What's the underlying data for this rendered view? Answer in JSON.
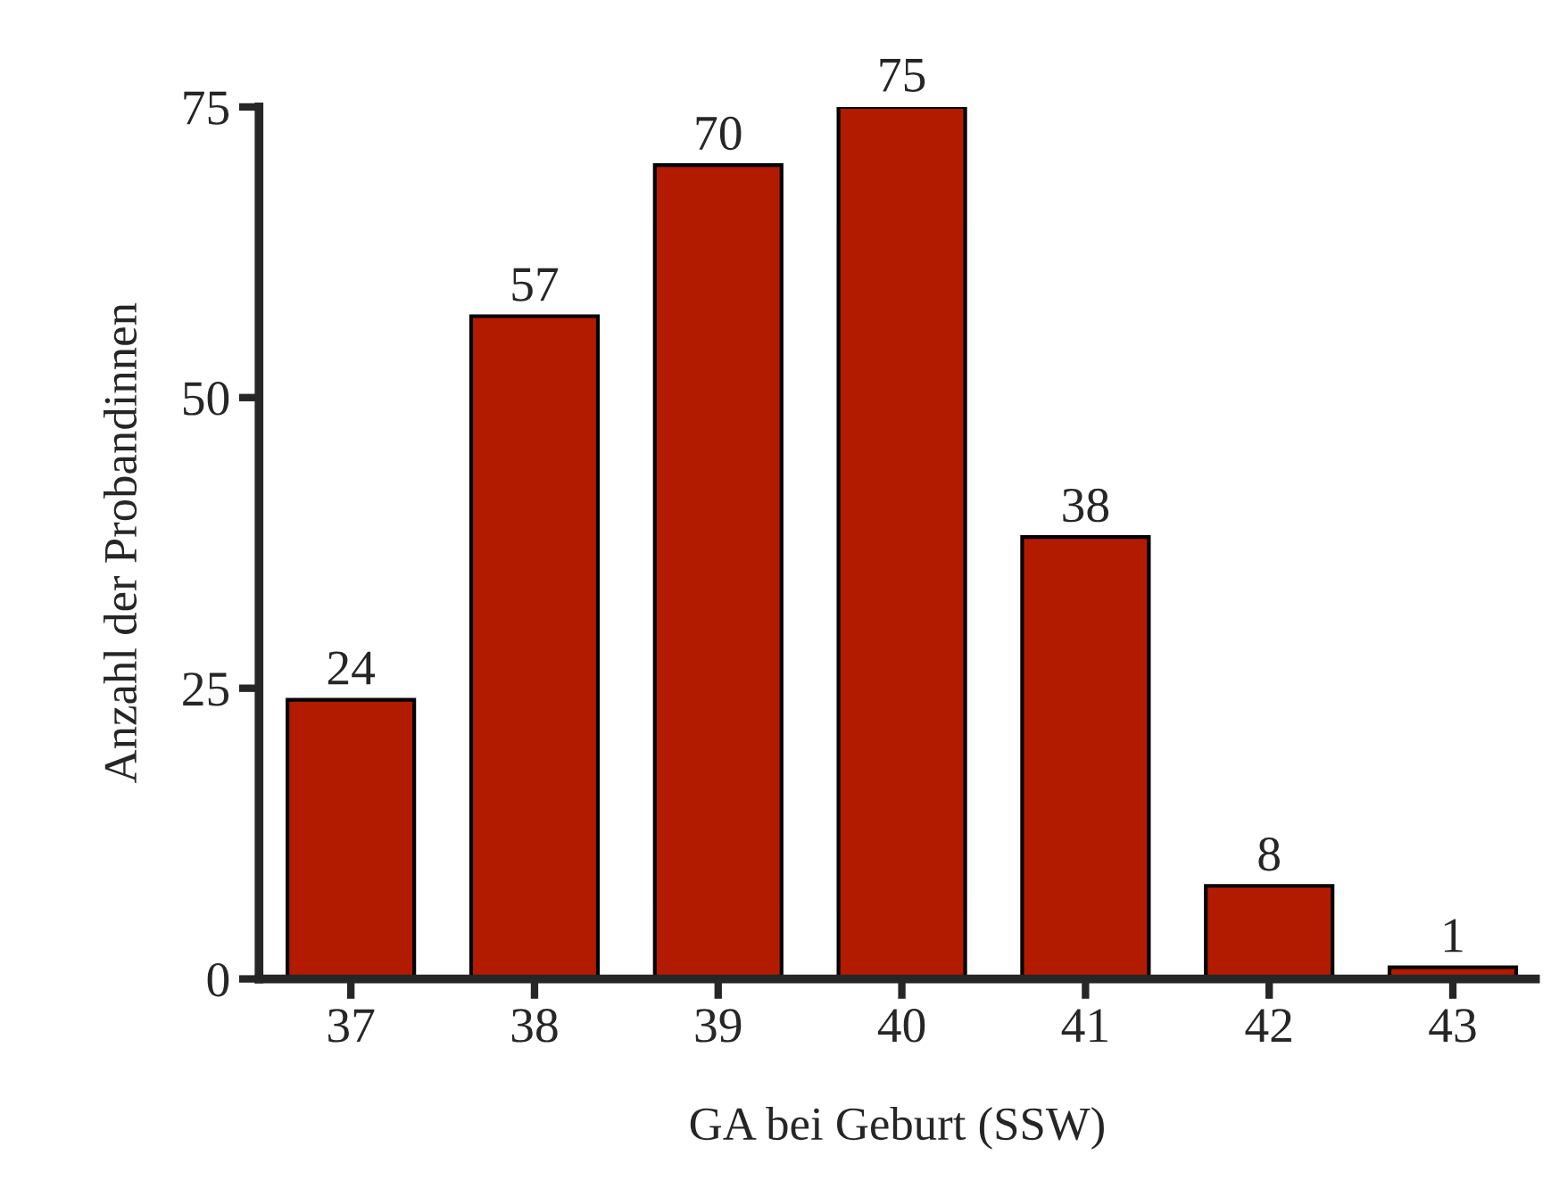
{
  "chart_data": {
    "type": "bar",
    "xlabel": "GA bei Geburt (SSW)",
    "ylabel": "Anzahl der Probandinnen",
    "categories": [
      "37",
      "38",
      "39",
      "40",
      "41",
      "42",
      "43"
    ],
    "values": [
      24,
      57,
      70,
      75,
      38,
      8,
      1
    ],
    "color": "#b31b00",
    "ylim": [
      0,
      75
    ],
    "yticks": [
      0,
      25,
      50,
      75
    ],
    "grid": false,
    "data_labels": true
  }
}
